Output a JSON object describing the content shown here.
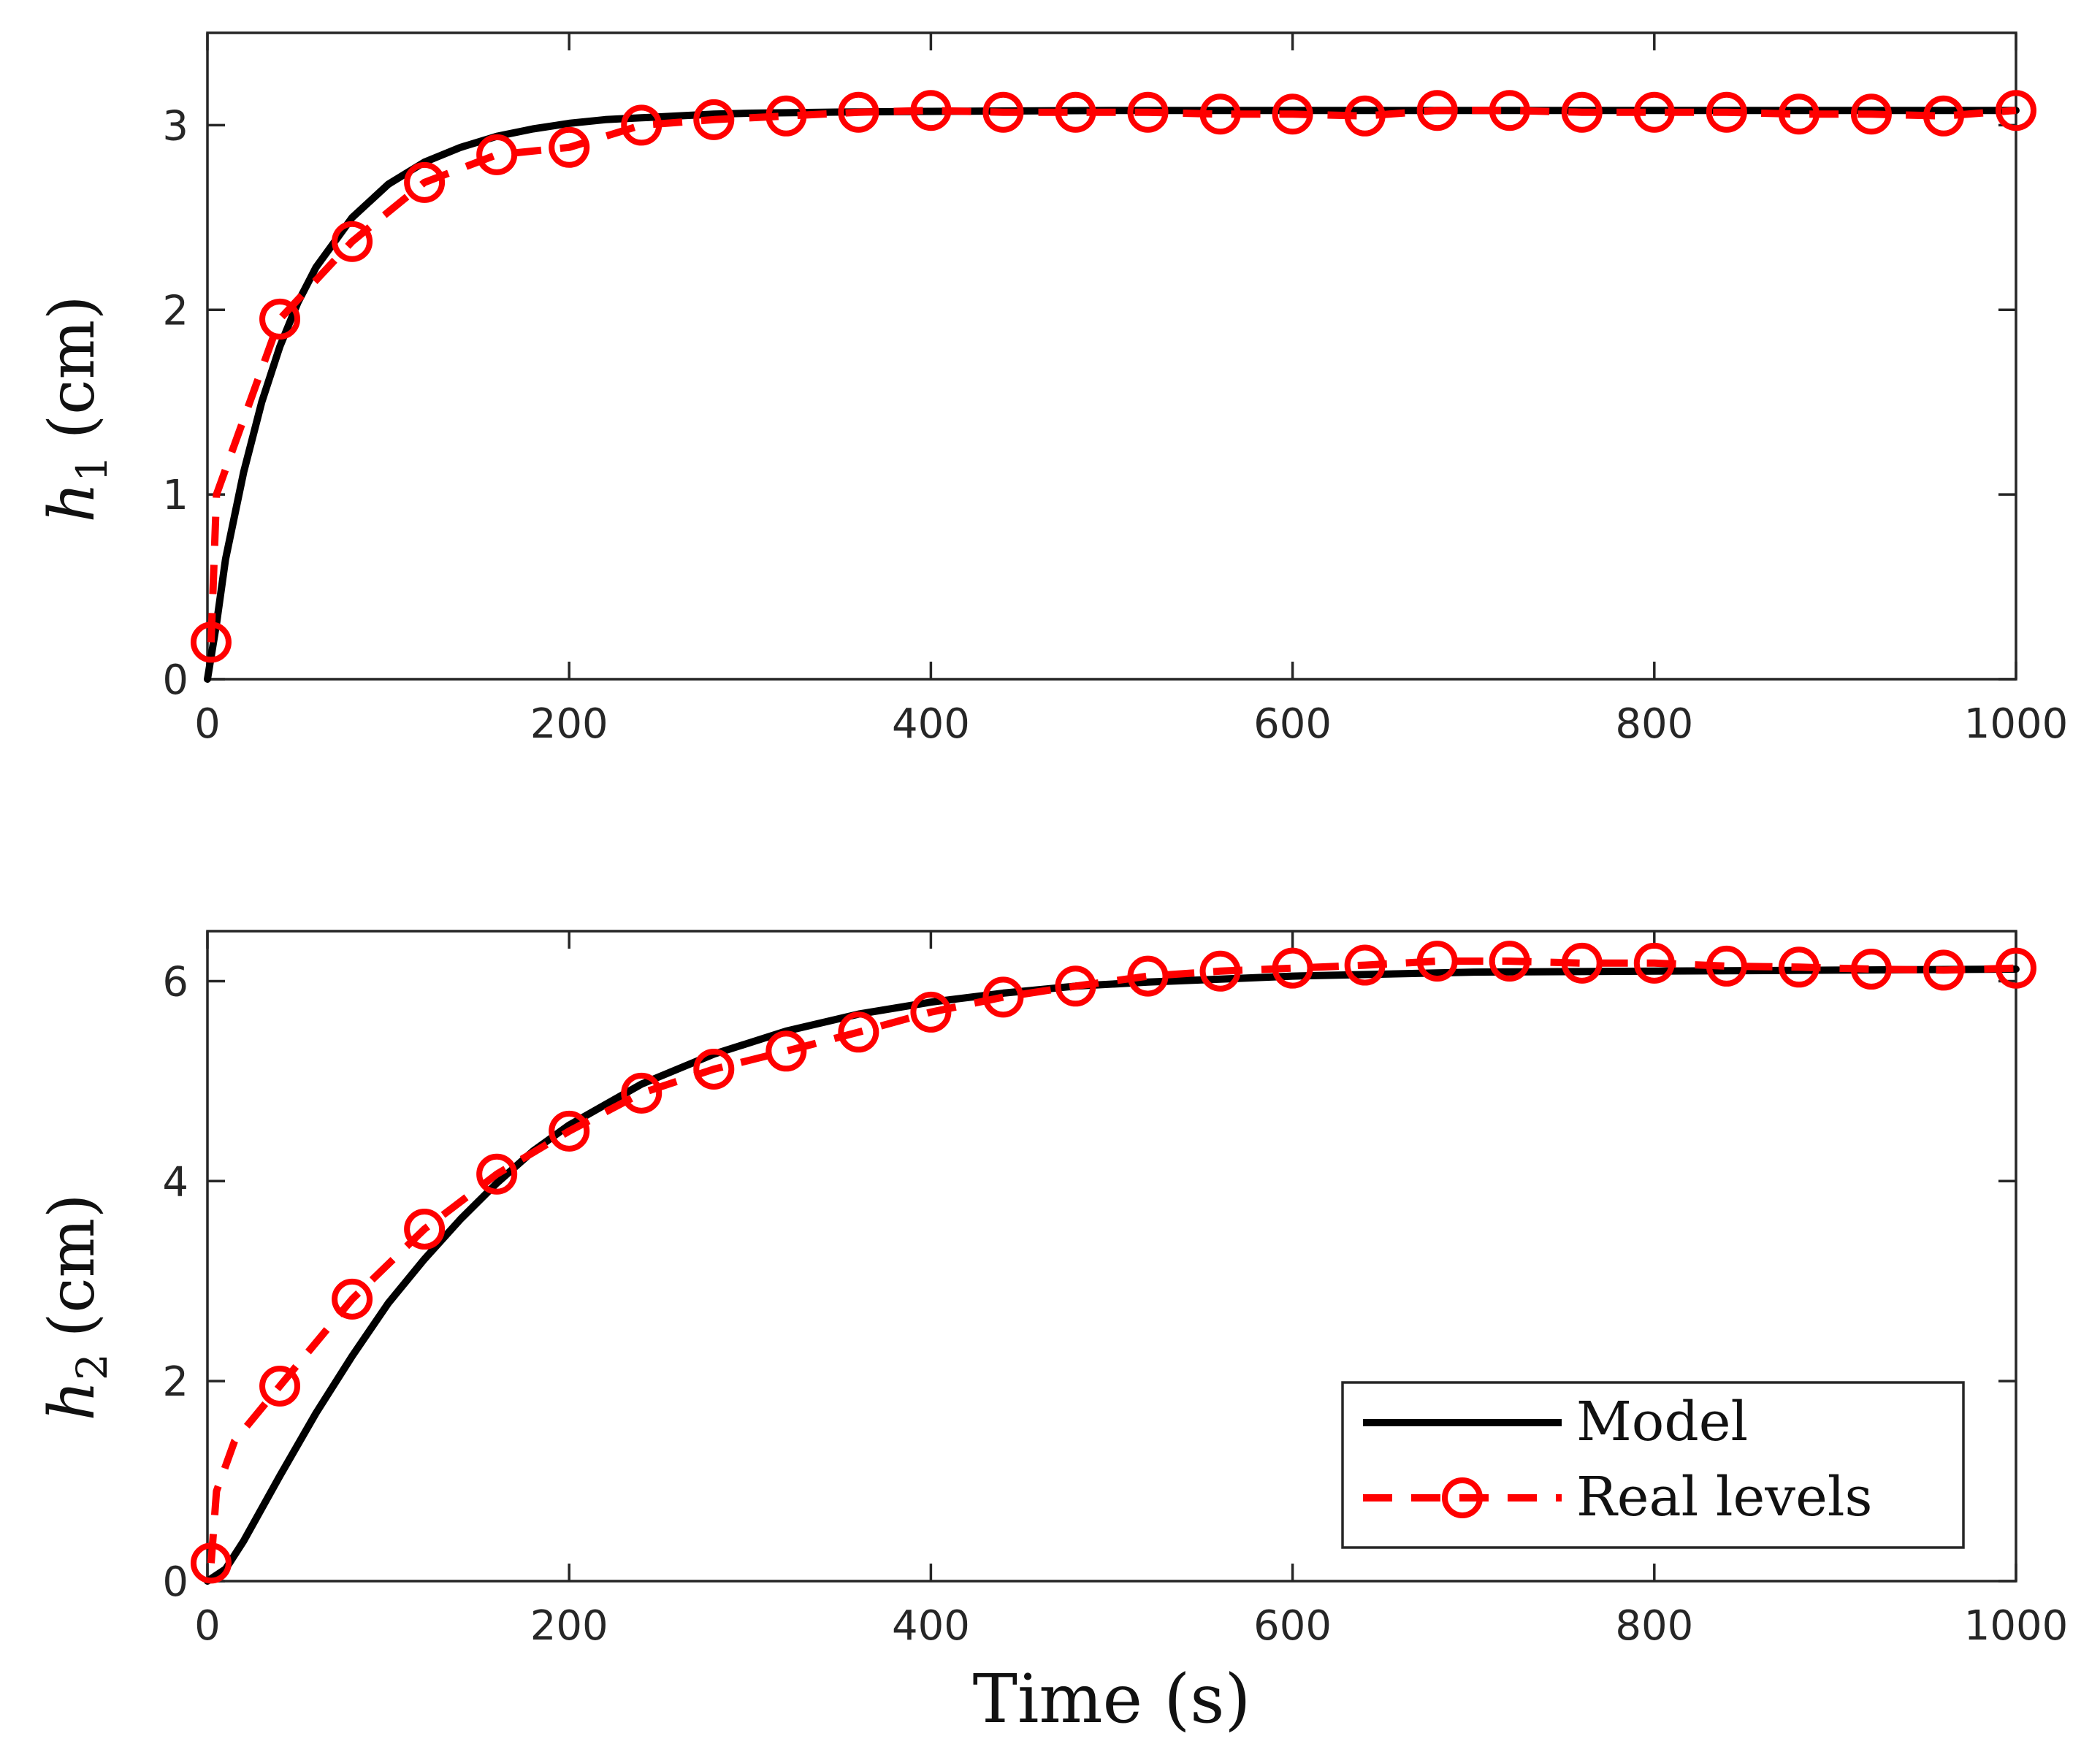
{
  "chart_data": [
    {
      "type": "line",
      "id": "top",
      "xlabel": "",
      "ylabel": {
        "symbol": "h",
        "subscript": "1",
        "unit": "(cm)"
      },
      "xlim": [
        0,
        1000
      ],
      "ylim": [
        0,
        3.5
      ],
      "xticks": [
        "0",
        "200",
        "400",
        "600",
        "800",
        "1000"
      ],
      "xtick_values": [
        0,
        200,
        400,
        600,
        800,
        1000
      ],
      "yticks": [
        "0",
        "1",
        "2",
        "3"
      ],
      "ytick_values": [
        0,
        1,
        2,
        3
      ],
      "series": [
        {
          "name": "Model",
          "style": "solid",
          "color": "#000000",
          "x": [
            0,
            5,
            10,
            20,
            30,
            40,
            50,
            60,
            80,
            100,
            120,
            140,
            160,
            180,
            200,
            220,
            240,
            260,
            280,
            300,
            340,
            400,
            500,
            600,
            700,
            800,
            900,
            1000
          ],
          "y": [
            0,
            0.3,
            0.65,
            1.12,
            1.5,
            1.8,
            2.04,
            2.23,
            2.5,
            2.68,
            2.8,
            2.88,
            2.94,
            2.98,
            3.01,
            3.03,
            3.04,
            3.05,
            3.06,
            3.065,
            3.07,
            3.075,
            3.08,
            3.08,
            3.08,
            3.08,
            3.08,
            3.08
          ]
        },
        {
          "name": "Real levels",
          "style": "dashed-circle",
          "color": "#ff0000",
          "x": [
            2,
            5,
            40,
            80,
            120,
            160,
            200,
            240,
            280,
            320,
            360,
            400,
            440,
            480,
            520,
            560,
            600,
            640,
            680,
            720,
            760,
            800,
            840,
            880,
            920,
            960,
            1000
          ],
          "y": [
            0.2,
            1.0,
            1.95,
            2.37,
            2.69,
            2.84,
            2.88,
            3.0,
            3.03,
            3.05,
            3.07,
            3.08,
            3.07,
            3.07,
            3.07,
            3.06,
            3.06,
            3.05,
            3.08,
            3.08,
            3.07,
            3.07,
            3.07,
            3.06,
            3.06,
            3.05,
            3.08
          ],
          "marker_x": [
            2,
            40,
            80,
            120,
            160,
            200,
            240,
            280,
            320,
            360,
            400,
            440,
            480,
            520,
            560,
            600,
            640,
            680,
            720,
            760,
            800,
            840,
            880,
            920,
            960,
            1000
          ],
          "marker_y": [
            0.2,
            1.95,
            2.37,
            2.69,
            2.84,
            2.88,
            3.0,
            3.03,
            3.05,
            3.07,
            3.08,
            3.07,
            3.07,
            3.07,
            3.06,
            3.06,
            3.05,
            3.08,
            3.08,
            3.07,
            3.07,
            3.07,
            3.06,
            3.06,
            3.05,
            3.08
          ]
        }
      ]
    },
    {
      "type": "line",
      "id": "bottom",
      "xlabel": "Time (s)",
      "ylabel": {
        "symbol": "h",
        "subscript": "2",
        "unit": "(cm)"
      },
      "xlim": [
        0,
        1000
      ],
      "ylim": [
        0,
        6.5
      ],
      "xticks": [
        "0",
        "200",
        "400",
        "600",
        "800",
        "1000"
      ],
      "xtick_values": [
        0,
        200,
        400,
        600,
        800,
        1000
      ],
      "yticks": [
        "0",
        "2",
        "4",
        "6"
      ],
      "ytick_values": [
        0,
        2,
        4,
        6
      ],
      "legend": {
        "position": "bottom-right",
        "entries": [
          "Model",
          "Real levels"
        ]
      },
      "series": [
        {
          "name": "Model",
          "style": "solid",
          "color": "#000000",
          "x": [
            0,
            10,
            20,
            40,
            60,
            80,
            100,
            120,
            140,
            160,
            180,
            200,
            240,
            280,
            320,
            360,
            400,
            440,
            480,
            520,
            560,
            600,
            700,
            800,
            900,
            1000
          ],
          "y": [
            0,
            0.12,
            0.4,
            1.05,
            1.68,
            2.25,
            2.78,
            3.22,
            3.62,
            3.98,
            4.3,
            4.56,
            4.97,
            5.27,
            5.5,
            5.67,
            5.79,
            5.88,
            5.95,
            5.99,
            6.02,
            6.05,
            6.09,
            6.1,
            6.11,
            6.12
          ]
        },
        {
          "name": "Real levels",
          "style": "dashed-circle",
          "color": "#ff0000",
          "x": [
            2,
            5,
            15,
            40,
            80,
            120,
            160,
            200,
            240,
            280,
            320,
            360,
            400,
            440,
            480,
            520,
            560,
            600,
            640,
            680,
            720,
            760,
            800,
            840,
            880,
            920,
            960,
            1000
          ],
          "y": [
            0.18,
            0.9,
            1.4,
            1.95,
            2.82,
            3.52,
            4.07,
            4.5,
            4.88,
            5.12,
            5.3,
            5.49,
            5.69,
            5.84,
            5.95,
            6.05,
            6.1,
            6.13,
            6.16,
            6.2,
            6.2,
            6.18,
            6.18,
            6.15,
            6.14,
            6.12,
            6.11,
            6.13
          ],
          "marker_x": [
            2,
            40,
            80,
            120,
            160,
            200,
            240,
            280,
            320,
            360,
            400,
            440,
            480,
            520,
            560,
            600,
            640,
            680,
            720,
            760,
            800,
            840,
            880,
            920,
            960,
            1000
          ],
          "marker_y": [
            0.18,
            1.95,
            2.82,
            3.52,
            4.07,
            4.5,
            4.88,
            5.12,
            5.3,
            5.49,
            5.69,
            5.84,
            5.95,
            6.05,
            6.1,
            6.13,
            6.16,
            6.2,
            6.2,
            6.18,
            6.18,
            6.15,
            6.14,
            6.12,
            6.11,
            6.13
          ]
        }
      ]
    }
  ],
  "legend": {
    "model_label": "Model",
    "real_label": "Real levels"
  }
}
